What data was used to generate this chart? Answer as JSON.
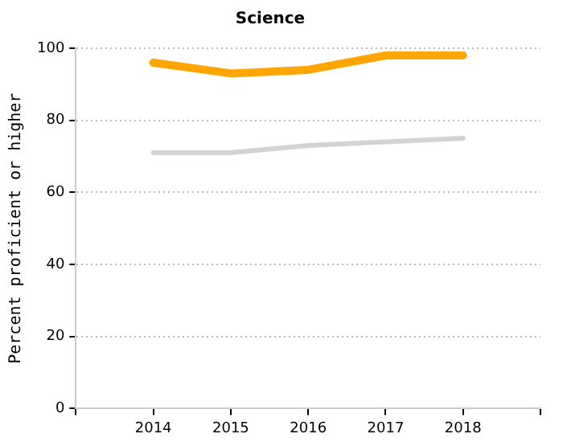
{
  "chart_data": {
    "type": "line",
    "title": "Science",
    "ylabel": "Percent proficient or higher",
    "x": [
      2014,
      2015,
      2016,
      2017,
      2018
    ],
    "series": [
      {
        "color": "#ffa500",
        "values": [
          96,
          93,
          94,
          98,
          98
        ]
      },
      {
        "color": "#d3d3d3",
        "values": [
          71,
          71,
          73,
          74,
          75
        ]
      }
    ],
    "xlim": [
      2013,
      2019
    ],
    "xticks": [
      {
        "value": 2013,
        "label": null
      },
      2014,
      2015,
      2016,
      2017,
      2018,
      {
        "value": 2019,
        "label": null
      }
    ],
    "ylim": [
      0,
      100
    ],
    "yticks": [
      0,
      20,
      40,
      60,
      80,
      100
    ],
    "grid": "y",
    "legend": false,
    "marker": "none",
    "line_style": "solid"
  }
}
